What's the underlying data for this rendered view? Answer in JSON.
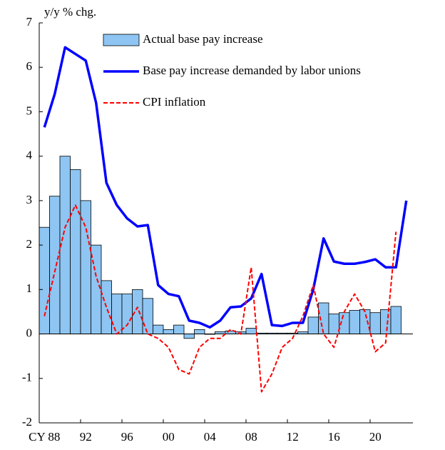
{
  "chart_data": {
    "type": "combo",
    "y_label": "y/y % chg.",
    "categories": [
      "CY 88",
      null,
      null,
      null,
      "92",
      null,
      null,
      null,
      "96",
      null,
      null,
      null,
      "00",
      null,
      null,
      null,
      "04",
      null,
      null,
      null,
      "08",
      null,
      null,
      null,
      "12",
      null,
      null,
      null,
      "16",
      null,
      null,
      null,
      "20",
      null,
      null,
      null
    ],
    "series": [
      {
        "name": "Actual base pay increase",
        "type": "bar",
        "color": "#8ec5f2",
        "values": [
          2.4,
          3.1,
          4.0,
          3.7,
          3.0,
          2.0,
          1.2,
          0.9,
          0.9,
          1.0,
          0.8,
          0.2,
          0.1,
          0.2,
          -0.1,
          0.1,
          0.0,
          0.05,
          0.07,
          0.05,
          0.13,
          0.02,
          0.02,
          0.02,
          0.02,
          0.05,
          0.38,
          0.7,
          0.45,
          0.48,
          0.53,
          0.55,
          0.48,
          0.55,
          0.62,
          null
        ]
      },
      {
        "name": "Base pay increase demanded by labor unions",
        "type": "line",
        "color": "#0000ff",
        "dashed": false,
        "values": [
          4.65,
          5.4,
          6.45,
          6.3,
          6.15,
          5.2,
          3.4,
          2.9,
          2.6,
          2.42,
          2.45,
          1.1,
          0.9,
          0.85,
          0.3,
          0.25,
          0.15,
          0.3,
          0.6,
          0.62,
          0.8,
          1.35,
          0.2,
          0.18,
          0.25,
          0.25,
          1.0,
          2.15,
          1.63,
          1.58,
          1.58,
          1.62,
          1.68,
          1.5,
          1.5,
          3.0
        ]
      },
      {
        "name": "CPI inflation",
        "type": "line",
        "color": "#ff0000",
        "dashed": true,
        "values": [
          0.4,
          1.4,
          2.4,
          2.9,
          2.4,
          1.3,
          0.6,
          0.0,
          0.2,
          0.6,
          0.0,
          -0.1,
          -0.3,
          -0.8,
          -0.9,
          -0.3,
          -0.1,
          -0.1,
          0.1,
          0.0,
          1.5,
          -1.3,
          -0.9,
          -0.3,
          -0.1,
          0.4,
          1.1,
          0.0,
          -0.3,
          0.5,
          0.9,
          0.5,
          -0.4,
          -0.2,
          2.3,
          null
        ]
      }
    ],
    "ylim": [
      -2,
      7
    ],
    "yticks": [
      -2,
      -1,
      0,
      1,
      2,
      3,
      4,
      5,
      6,
      7
    ]
  }
}
